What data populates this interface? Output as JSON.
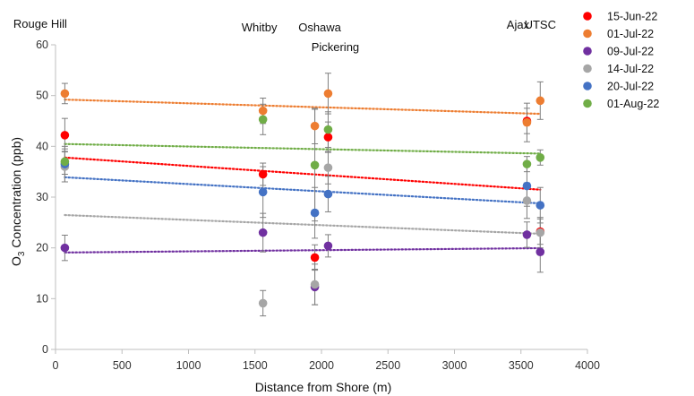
{
  "chart_data": {
    "type": "scatter",
    "xlabel": "Distance from Shore (m)",
    "ylabel_main": "O",
    "ylabel_sub": "3",
    "ylabel_rest": " Concentration (ppb)",
    "xlim": [
      0,
      4000
    ],
    "ylim": [
      0,
      60
    ],
    "x_ticks": [
      "0",
      "500",
      "1000",
      "1500",
      "2000",
      "2500",
      "3000",
      "3500",
      "4000"
    ],
    "y_ticks": [
      "0",
      "10",
      "20",
      "30",
      "40",
      "50",
      "60"
    ],
    "x_tick_values": [
      0,
      500,
      1000,
      1500,
      2000,
      2500,
      3000,
      3500,
      4000
    ],
    "y_tick_values": [
      0,
      10,
      20,
      30,
      40,
      50,
      60
    ],
    "grid": false,
    "legend_position": "top-right",
    "trendlines": "linear, dotted",
    "annotations": [
      {
        "text": "Rouge Hill",
        "x": 60
      },
      {
        "text": "Whitby",
        "x": 1560
      },
      {
        "text": "Oshawa",
        "x": 1960
      },
      {
        "text": "Pickering",
        "x": 2050
      },
      {
        "text": "Ajax",
        "x": 3545
      },
      {
        "text": "UTSC",
        "x": 3645
      }
    ],
    "x": [
      70,
      1560,
      1950,
      2050,
      3545,
      3645
    ],
    "series": [
      {
        "name": "15-Jun-22",
        "color": "#ff0000",
        "values": [
          42.2,
          34.5,
          18.1,
          41.8,
          45.0,
          23.2
        ],
        "errors": [
          3.3,
          2.2,
          2.5,
          3.0,
          2.5,
          2.5
        ]
      },
      {
        "name": "01-Jul-22",
        "color": "#ed7d31",
        "values": [
          50.4,
          47.0,
          44.0,
          50.4,
          44.7,
          49.0
        ],
        "errors": [
          2.0,
          2.5,
          3.5,
          4.0,
          3.8,
          3.7
        ]
      },
      {
        "name": "09-Jul-22",
        "color": "#7030a0",
        "values": [
          20.0,
          23.0,
          12.3,
          20.4,
          22.6,
          19.2
        ],
        "errors": [
          2.5,
          3.8,
          3.5,
          2.2,
          2.5,
          4.0
        ]
      },
      {
        "name": "14-Jul-22",
        "color": "#a6a6a6",
        "values": [
          36.0,
          9.1,
          12.8,
          35.8,
          29.3,
          23.0
        ],
        "errors": [
          3.0,
          2.5,
          4.0,
          3.2,
          3.5,
          3.0
        ]
      },
      {
        "name": "20-Jul-22",
        "color": "#4472c4",
        "values": [
          36.5,
          31.0,
          26.9,
          30.6,
          32.2,
          28.4
        ],
        "errors": [
          3.5,
          5.0,
          5.0,
          3.5,
          4.0,
          3.5
        ]
      },
      {
        "name": "01-Aug-22",
        "color": "#70ad47",
        "values": [
          37.0,
          45.3,
          36.3,
          43.3,
          36.5,
          37.8
        ],
        "errors": [
          2.5,
          3.0,
          11.0,
          3.5,
          1.5,
          1.5
        ]
      }
    ]
  }
}
